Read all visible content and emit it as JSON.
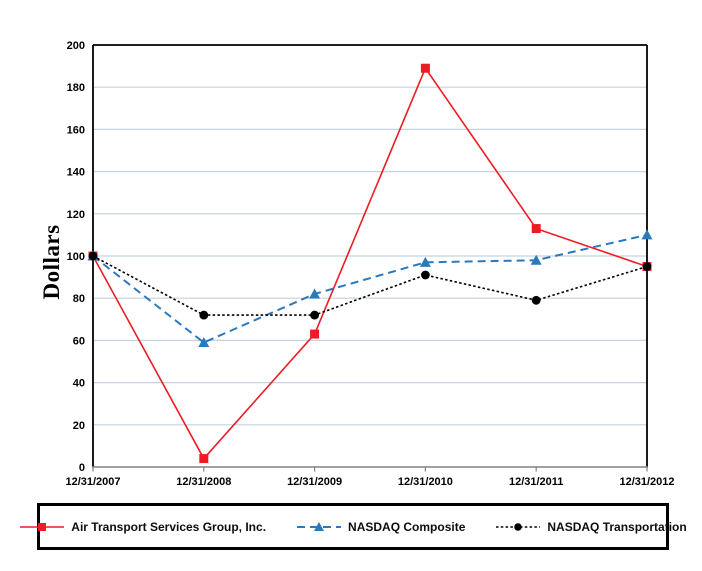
{
  "chart_data": {
    "type": "line",
    "title": "",
    "ylabel": "Dollars",
    "xlabel": "",
    "ylim": [
      0,
      200
    ],
    "ytick_step": 20,
    "y_tick_labels": [
      "0",
      "20",
      "40",
      "60",
      "80",
      "100",
      "120",
      "140",
      "160",
      "180",
      "200"
    ],
    "grid": true,
    "legend_position": "bottom",
    "x_categories": [
      "12/31/2007",
      "12/31/2008",
      "12/31/2009",
      "12/31/2010",
      "12/31/2011",
      "12/31/2012"
    ],
    "series": [
      {
        "name": "Air Transport Services Group, Inc.",
        "color": "#ED1C24",
        "line_style": "solid",
        "marker": "square",
        "values": [
          100,
          4,
          63,
          189,
          113,
          95
        ]
      },
      {
        "name": "NASDAQ Composite",
        "color": "#2B79BD",
        "line_style": "dashed",
        "marker": "triangle",
        "values": [
          100,
          59,
          82,
          97,
          98,
          110
        ]
      },
      {
        "name": "NASDAQ Transportation",
        "color": "#000000",
        "line_style": "dotted",
        "marker": "circle",
        "values": [
          100,
          72,
          72,
          91,
          79,
          95
        ]
      }
    ],
    "colors": {
      "gridline": "#C4D3DF",
      "frame": "#000000",
      "bottom_axis": "#808080",
      "background": "#FFFFFF"
    }
  }
}
